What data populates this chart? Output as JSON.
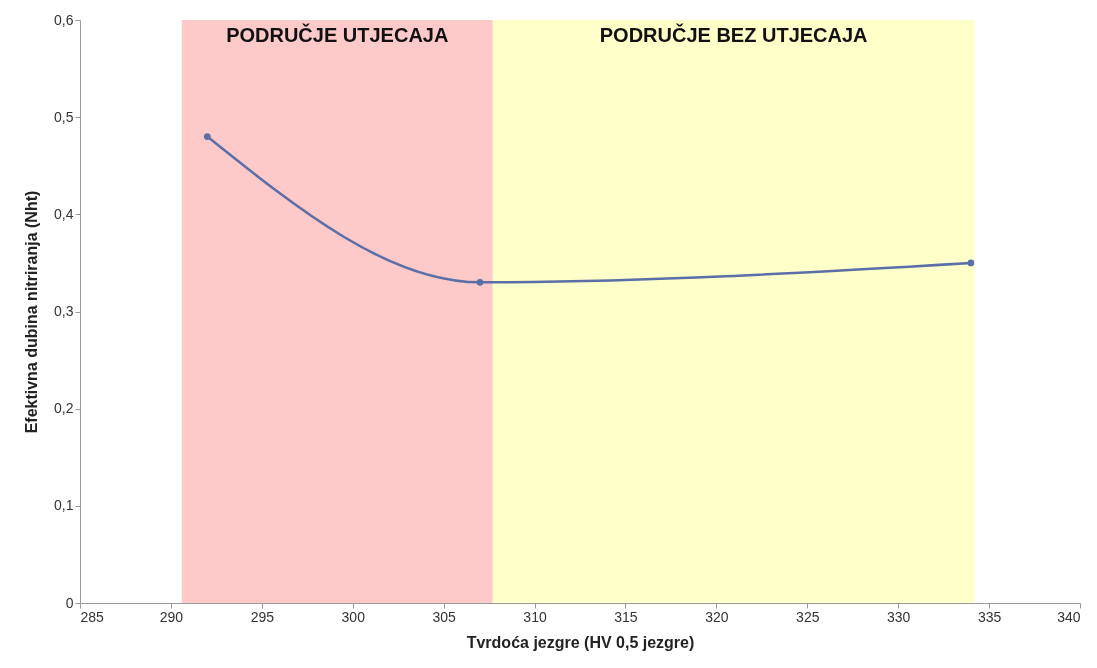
{
  "chart_data": {
    "type": "line",
    "xlabel": "Tvrdoća jezgre (HV 0,5 jezgre)",
    "ylabel": "Efektivna dubina nitriranja (Nht)",
    "x": [
      292,
      307,
      334
    ],
    "series": [
      {
        "color": "#5a6fa8",
        "values": [
          0.48,
          0.33,
          0.35
        ]
      }
    ],
    "marker": "circle",
    "grid": false,
    "xlim": [
      285,
      340
    ],
    "xticks": [
      285,
      290,
      295,
      300,
      305,
      310,
      315,
      320,
      325,
      330,
      335,
      340
    ],
    "ylim": [
      0,
      0.6
    ],
    "yticks": [
      0,
      {
        "value": 0.1,
        "label": "0,1"
      },
      {
        "value": 0.2,
        "label": "0,2"
      },
      {
        "value": 0.3,
        "label": "0,3"
      },
      {
        "value": 0.4,
        "label": "0,4"
      },
      {
        "value": 0.5,
        "label": "0,5"
      },
      {
        "value": 0.6,
        "label": "0,6"
      }
    ],
    "bands": [
      {
        "axis": "x",
        "from": 290.6,
        "to": 307.7,
        "label": "PODRUČJE UTJECAJA",
        "color": "#fdc9c9"
      },
      {
        "axis": "x",
        "from": 307.7,
        "to": 334.2,
        "label": "PODRUČJE BEZ UTJECAJA",
        "color": "#ffffc9"
      }
    ]
  }
}
